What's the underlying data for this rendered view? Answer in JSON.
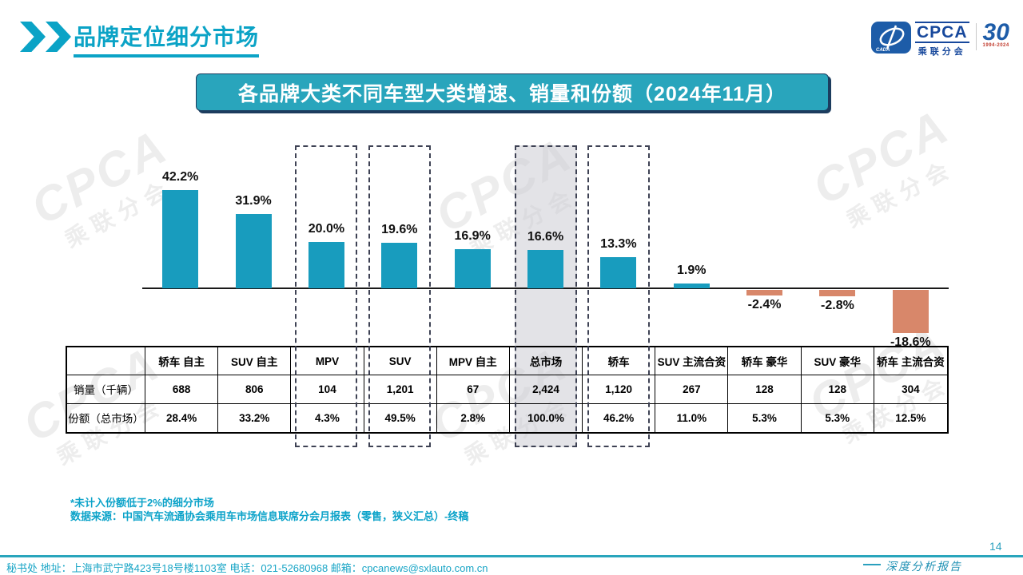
{
  "page": {
    "title": "品牌定位细分市场",
    "page_number": "14",
    "report_label": "深度分析报告",
    "footer_contact": "秘书处  地址：上海市武宁路423号18号楼1103室 电话：021-52680968  邮箱：cpcanews@sxlauto.com.cn",
    "footnote_line1": "*未计入份额低于2%的细分市场",
    "footnote_line2": "数据来源：中国汽车流通协会乘用车市场信息联席分会月报表（零售，狭义汇总）-终稿"
  },
  "banner": {
    "title": "各品牌大类不同车型大类增速、销量和份额（2024年11月）"
  },
  "logo": {
    "cpca": "CPCA",
    "cn": "乘联分会",
    "cada": "CADA",
    "thirty": "30",
    "years": "1994-2024"
  },
  "watermark": {
    "text_en": "CPCA",
    "text_cn": "乘联分会"
  },
  "colors": {
    "bar_positive": "#189cbe",
    "bar_negative": "#d8876a",
    "banner_bg": "#29a5bc",
    "accent_text": "#0ba3c6",
    "dashed_border": "#3e4254",
    "highlight_fill": "rgba(204,204,212,0.55)"
  },
  "chart_data": {
    "type": "bar",
    "title": "各品牌大类不同车型大类增速、销量和份额（2024年11月）",
    "categories": [
      "轿车 自主",
      "SUV 自主",
      "MPV",
      "SUV",
      "MPV 自主",
      "总市场",
      "轿车",
      "SUV 主流合资",
      "轿车 豪华",
      "SUV 豪华",
      "轿车 主流合资"
    ],
    "series": [
      {
        "name": "增速",
        "values": [
          42.2,
          31.9,
          20.0,
          19.6,
          16.9,
          16.6,
          13.3,
          1.9,
          -2.4,
          -2.8,
          -18.6
        ]
      }
    ],
    "value_suffix": "%",
    "ylim": [
      -20,
      45
    ],
    "grid": false,
    "legend": false,
    "highlighted_categories": [
      "MPV",
      "SUV",
      "总市场",
      "轿车"
    ],
    "gray_filled_category": "总市场",
    "table": {
      "row_labels": [
        "销量（千辆）",
        "份额（总市场）"
      ],
      "rows": [
        [
          "688",
          "806",
          "104",
          "1,201",
          "67",
          "2,424",
          "1,120",
          "267",
          "128",
          "128",
          "304"
        ],
        [
          "28.4%",
          "33.2%",
          "4.3%",
          "49.5%",
          "2.8%",
          "100.0%",
          "46.2%",
          "11.0%",
          "5.3%",
          "5.3%",
          "12.5%"
        ]
      ]
    }
  }
}
